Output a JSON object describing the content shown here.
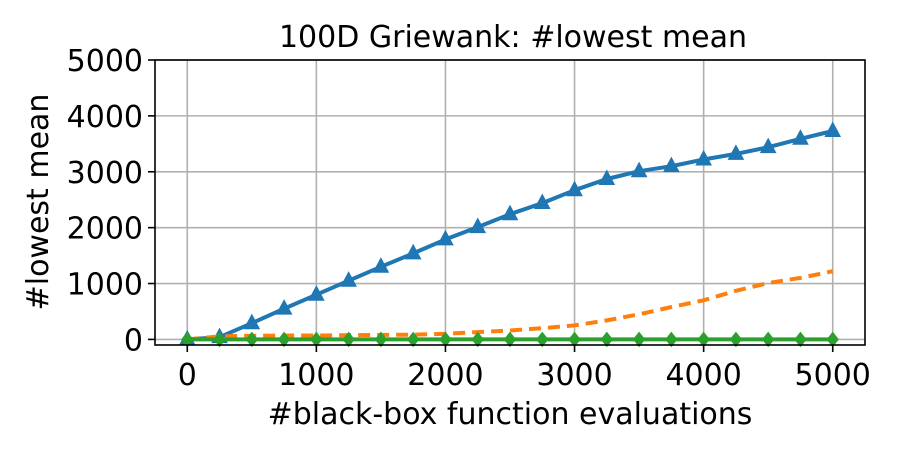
{
  "chart_data": {
    "type": "line",
    "title": "100D Griewank: #lowest mean",
    "xlabel": "#black-box function evaluations",
    "ylabel": "#lowest mean",
    "xlim": [
      -250,
      5250
    ],
    "ylim": [
      -100,
      5000
    ],
    "xticks": [
      0,
      1000,
      2000,
      3000,
      4000,
      5000
    ],
    "yticks": [
      0,
      1000,
      2000,
      3000,
      4000,
      5000
    ],
    "grid": true,
    "x": [
      0,
      250,
      500,
      750,
      1000,
      1250,
      1500,
      1750,
      2000,
      2250,
      2500,
      2750,
      3000,
      3250,
      3500,
      3750,
      4000,
      4250,
      4500,
      4750,
      5000
    ],
    "series": [
      {
        "color": "#1f77b4",
        "line_style": "solid",
        "marker": "triangle",
        "values": [
          0,
          40,
          290,
          550,
          800,
          1050,
          1300,
          1540,
          1790,
          2010,
          2240,
          2440,
          2670,
          2870,
          3010,
          3100,
          3220,
          3320,
          3440,
          3590,
          3730
        ]
      },
      {
        "color": "#ff7f0e",
        "line_style": "dashed",
        "marker": "none",
        "values": [
          0,
          55,
          65,
          70,
          70,
          75,
          80,
          85,
          100,
          130,
          160,
          200,
          250,
          340,
          450,
          580,
          700,
          870,
          1010,
          1100,
          1220
        ]
      },
      {
        "color": "#2ca02c",
        "line_style": "solid",
        "marker": "diamond",
        "values": [
          0,
          0,
          0,
          0,
          0,
          0,
          0,
          0,
          0,
          0,
          0,
          0,
          0,
          0,
          0,
          0,
          0,
          0,
          0,
          0,
          0
        ]
      }
    ]
  }
}
